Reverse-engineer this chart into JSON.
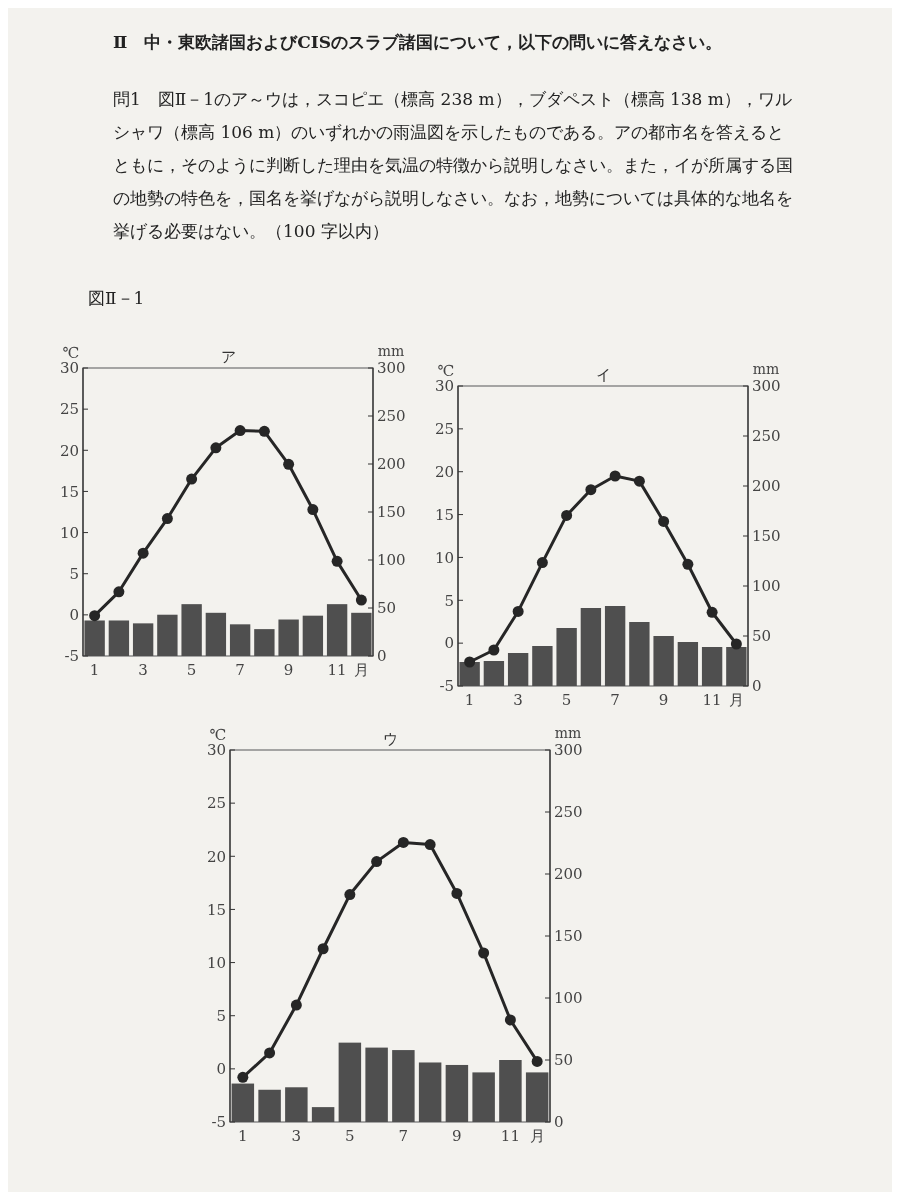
{
  "chart_data": [
    {
      "type": "bar",
      "title": "ア",
      "annotations": [
        "Ⅱ　中・東欧諸国およびCISのスラブ諸国について，以下の問いに答えなさい。",
        "問1　図Ⅱ－1のア～ウは，スコピエ（標高 238 m），ブダペスト（標高 138 m），ワルシャワ（標高 106 m）のいずれかの雨温図を示したものである。アの都市名を答えるとともに，そのように判断した理由を気温の特徴から説明しなさい。また，イが所属する国の地勢の特色を，国名を挙げながら説明しなさい。なお，地勢については具体的な地名を挙げる必要はない。（100 字以内）",
        "図Ⅱ－1"
      ],
      "categories": [
        "1",
        null,
        "3",
        null,
        "5",
        null,
        "7",
        null,
        "9",
        null,
        "11",
        "月"
      ],
      "ylabel": "℃",
      "y2label": "mm",
      "ylim": [
        -5,
        30
      ],
      "yticks": [
        -5,
        0,
        5,
        10,
        15,
        20,
        25,
        30
      ],
      "y2lim": [
        0,
        300
      ],
      "y2ticks": [
        0,
        50,
        100,
        150,
        200,
        250,
        300
      ],
      "marker": "circle",
      "series": [
        {
          "axis": "y2",
          "color": "#4f4f4f",
          "values": [
            37,
            37,
            34,
            43,
            54,
            45,
            33,
            28,
            38,
            42,
            54,
            45
          ]
        },
        {
          "type": "line",
          "color": "#262626",
          "values": [
            -0.1,
            2.8,
            7.5,
            11.7,
            16.5,
            20.3,
            22.4,
            22.3,
            18.3,
            12.8,
            6.5,
            1.8
          ]
        }
      ]
    },
    {
      "type": "bar",
      "title": "イ",
      "categories": [
        "1",
        null,
        "3",
        null,
        "5",
        null,
        "7",
        null,
        "9",
        null,
        "11",
        "月"
      ],
      "ylabel": "℃",
      "y2label": "mm",
      "ylim": [
        -5,
        30
      ],
      "yticks": [
        -5,
        0,
        5,
        10,
        15,
        20,
        25,
        30
      ],
      "y2lim": [
        0,
        300
      ],
      "y2ticks": [
        0,
        50,
        100,
        150,
        200,
        250,
        300
      ],
      "marker": "circle",
      "series": [
        {
          "axis": "y2",
          "color": "#4f4f4f",
          "values": [
            24,
            25,
            33,
            40,
            58,
            78,
            80,
            64,
            50,
            44,
            39,
            39
          ]
        },
        {
          "type": "line",
          "color": "#262626",
          "values": [
            -2.2,
            -0.8,
            3.7,
            9.4,
            14.9,
            17.9,
            19.5,
            18.9,
            14.2,
            9.2,
            3.6,
            -0.1
          ]
        }
      ]
    },
    {
      "type": "bar",
      "title": "ウ",
      "categories": [
        "1",
        null,
        "3",
        null,
        "5",
        null,
        "7",
        null,
        "9",
        null,
        "11",
        "月"
      ],
      "ylabel": "℃",
      "y2label": "mm",
      "ylim": [
        -5,
        30
      ],
      "yticks": [
        -5,
        0,
        5,
        10,
        15,
        20,
        25,
        30
      ],
      "y2lim": [
        0,
        300
      ],
      "y2ticks": [
        0,
        50,
        100,
        150,
        200,
        250,
        300
      ],
      "marker": "circle",
      "series": [
        {
          "axis": "y2",
          "color": "#4f4f4f",
          "values": [
            31,
            26,
            28,
            12,
            64,
            60,
            58,
            48,
            46,
            40,
            50,
            40
          ]
        },
        {
          "type": "line",
          "color": "#262626",
          "values": [
            -0.8,
            1.5,
            6.0,
            11.3,
            16.4,
            19.5,
            21.3,
            21.1,
            16.5,
            10.9,
            4.6,
            0.7
          ]
        }
      ]
    }
  ]
}
